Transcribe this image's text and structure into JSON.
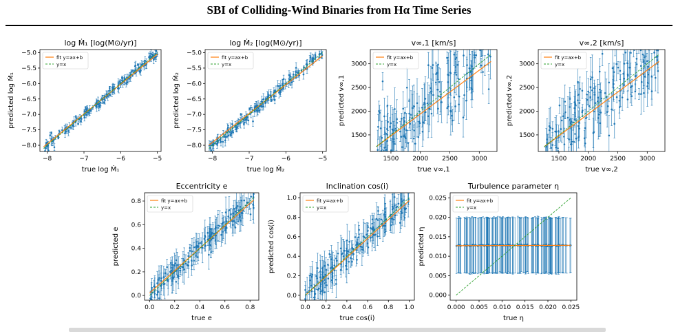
{
  "page": {
    "title": "SBI of Colliding-Wind Binaries from Hα Time Series"
  },
  "legend": {
    "fit_label": "fit y=ax+b",
    "identity_label": "y=x"
  },
  "colors": {
    "points": "#1f77b4",
    "fit": "#ff7f0e",
    "identity": "#2ca02c",
    "errorbar": "#1f77b4"
  },
  "chart_data": [
    {
      "type": "scatter",
      "title": "log Ṁ₁ [log(M⊙/yr)]",
      "xlabel": "true log Ṁ₁",
      "ylabel": "predicted log Ṁ₁",
      "xlim": [
        -8.2,
        -4.9
      ],
      "ylim": [
        -8.2,
        -4.9
      ],
      "xticks": [
        -8,
        -7,
        -6,
        -5
      ],
      "xtick_labels": [
        "−8",
        "−7",
        "−6",
        "−5"
      ],
      "yticks": [
        -8.0,
        -7.5,
        -7.0,
        -6.5,
        -6.0,
        -5.5,
        -5.0
      ],
      "ytick_labels": [
        "−8.0",
        "−7.5",
        "−7.0",
        "−6.5",
        "−6.0",
        "−5.5",
        "−5.0"
      ],
      "range": [
        -8.1,
        -5.0
      ],
      "fit": [
        -8.05,
        -5.05
      ],
      "noise": 0.08,
      "err": 0.12,
      "n": 180,
      "seed": 11,
      "legend": "top-left"
    },
    {
      "type": "scatter",
      "title": "log Ṁ₂ [log(M⊙/yr)]",
      "xlabel": "true log Ṁ₂",
      "ylabel": "predicted log Ṁ₂",
      "xlim": [
        -8.2,
        -4.9
      ],
      "ylim": [
        -8.2,
        -4.9
      ],
      "xticks": [
        -8,
        -7,
        -6,
        -5
      ],
      "xtick_labels": [
        "−8",
        "−7",
        "−6",
        "−5"
      ],
      "yticks": [
        -8.0,
        -7.5,
        -7.0,
        -6.5,
        -6.0,
        -5.5,
        -5.0
      ],
      "ytick_labels": [
        "−8.0",
        "−7.5",
        "−7.0",
        "−6.5",
        "−6.0",
        "−5.5",
        "−5.0"
      ],
      "range": [
        -8.1,
        -5.0
      ],
      "fit": [
        -8.0,
        -5.1
      ],
      "noise": 0.09,
      "err": 0.14,
      "n": 180,
      "seed": 23,
      "legend": "top-left"
    },
    {
      "type": "scatter",
      "title": "v∞,1 [km/s]",
      "xlabel": "true v∞,1",
      "ylabel": "predicted v∞,1",
      "xlim": [
        1150,
        3300
      ],
      "ylim": [
        1150,
        3300
      ],
      "xticks": [
        1500,
        2000,
        2500,
        3000
      ],
      "xtick_labels": [
        "1500",
        "2000",
        "2500",
        "3000"
      ],
      "yticks": [
        1500,
        2000,
        2500,
        3000
      ],
      "ytick_labels": [
        "1500",
        "2000",
        "2500",
        "3000"
      ],
      "range": [
        1250,
        3200
      ],
      "fit": [
        1250,
        3050
      ],
      "noise": 420,
      "err": 380,
      "n": 170,
      "seed": 37,
      "legend": "top-left"
    },
    {
      "type": "scatter",
      "title": "v∞,2 [km/s]",
      "xlabel": "true v∞,2",
      "ylabel": "predicted v∞,2",
      "xlim": [
        1150,
        3300
      ],
      "ylim": [
        1150,
        3300
      ],
      "xticks": [
        1500,
        2000,
        2500,
        3000
      ],
      "xtick_labels": [
        "1500",
        "2000",
        "2500",
        "3000"
      ],
      "yticks": [
        1500,
        2000,
        2500,
        3000
      ],
      "ytick_labels": [
        "1500",
        "2000",
        "2500",
        "3000"
      ],
      "range": [
        1250,
        3200
      ],
      "fit": [
        1250,
        3050
      ],
      "noise": 380,
      "err": 360,
      "n": 170,
      "seed": 41,
      "legend": "top-left"
    },
    {
      "type": "scatter",
      "title": "Eccentricity e",
      "xlabel": "true e",
      "ylabel": "predicted e",
      "xlim": [
        -0.04,
        0.87
      ],
      "ylim": [
        -0.04,
        0.87
      ],
      "xticks": [
        0.0,
        0.2,
        0.4,
        0.6,
        0.8
      ],
      "xtick_labels": [
        "0.0",
        "0.2",
        "0.4",
        "0.6",
        "0.8"
      ],
      "yticks": [
        0.0,
        0.2,
        0.4,
        0.6,
        0.8
      ],
      "ytick_labels": [
        "0.0",
        "0.2",
        "0.4",
        "0.6",
        "0.8"
      ],
      "range": [
        0.0,
        0.83
      ],
      "fit": [
        0.02,
        0.81
      ],
      "noise": 0.05,
      "err": 0.1,
      "n": 170,
      "seed": 53,
      "legend": "top-left"
    },
    {
      "type": "scatter",
      "title": "Inclination cos(i)",
      "xlabel": "true cos(i)",
      "ylabel": "predicted cos(i)",
      "xlim": [
        -0.05,
        1.05
      ],
      "ylim": [
        -0.05,
        1.05
      ],
      "xticks": [
        0.0,
        0.2,
        0.4,
        0.6,
        0.8,
        1.0
      ],
      "xtick_labels": [
        "0.0",
        "0.2",
        "0.4",
        "0.6",
        "0.8",
        "1.0"
      ],
      "yticks": [
        0.0,
        0.2,
        0.4,
        0.6,
        0.8,
        1.0
      ],
      "ytick_labels": [
        "0.0",
        "0.2",
        "0.4",
        "0.6",
        "0.8",
        "1.0"
      ],
      "range": [
        0.0,
        1.0
      ],
      "fit": [
        0.0,
        0.97
      ],
      "noise": 0.07,
      "err": 0.13,
      "n": 170,
      "seed": 67,
      "legend": "top-left"
    },
    {
      "type": "scatter",
      "title": "Turbulence parameter η",
      "xlabel": "true η",
      "ylabel": "predicted η",
      "xlim": [
        -0.0013,
        0.0263
      ],
      "ylim": [
        -0.0013,
        0.0263
      ],
      "xticks": [
        0.0,
        0.005,
        0.01,
        0.015,
        0.02,
        0.025
      ],
      "xtick_labels": [
        "0.000",
        "0.005",
        "0.010",
        "0.015",
        "0.020",
        "0.025"
      ],
      "yticks": [
        0.0,
        0.005,
        0.01,
        0.015,
        0.02,
        0.025
      ],
      "ytick_labels": [
        "0.000",
        "0.005",
        "0.010",
        "0.015",
        "0.020",
        "0.025"
      ],
      "range": [
        0.0,
        0.025
      ],
      "fit": [
        0.0127,
        0.0128
      ],
      "flat": true,
      "flat_value": 0.0128,
      "flat_noise": 0.00012,
      "flat_err": 0.0073,
      "n": 160,
      "seed": 79,
      "legend": "top-left"
    }
  ]
}
